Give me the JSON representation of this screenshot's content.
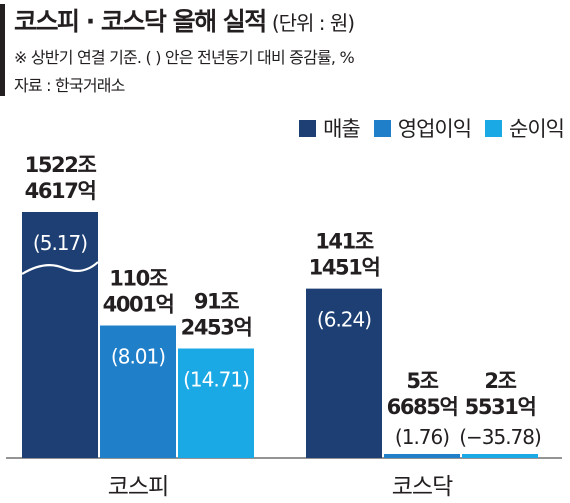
{
  "header": {
    "title": "코스피 · 코스닥 올해 실적",
    "unit": "(단위 : 원)",
    "note": "※ 상반기 연결 기준. (  ) 안은 전년동기 대비 증감률, %",
    "source": "자료 : 한국거래소"
  },
  "chart_data": {
    "type": "bar",
    "title": "코스피 · 코스닥 올해 실적",
    "unit": "(단위 : 원)",
    "categories": [
      "코스피",
      "코스닥"
    ],
    "legend_position": "top-right",
    "grid": false,
    "ylim": [
      0,
      1600
    ],
    "series": [
      {
        "name": "매출",
        "color": "#1d3f73",
        "values": [
          1522.4617,
          141.1451
        ],
        "labels": [
          "1522조 4617억",
          "141조 1451억"
        ],
        "growth": [
          "(5.17)",
          "(6.24)"
        ]
      },
      {
        "name": "영업이익",
        "color": "#1f7fc9",
        "values": [
          110.4001,
          5.6685
        ],
        "labels": [
          "110조 4001억",
          "5조 6685억"
        ],
        "growth": [
          "(8.01)",
          "(1.76)"
        ]
      },
      {
        "name": "순이익",
        "color": "#1ba9e6",
        "values": [
          91.2453,
          2.5531
        ],
        "labels": [
          "91조 2453억",
          "2조 5531억"
        ],
        "growth": [
          "(14.71)",
          "(−35.78)"
        ]
      }
    ]
  }
}
